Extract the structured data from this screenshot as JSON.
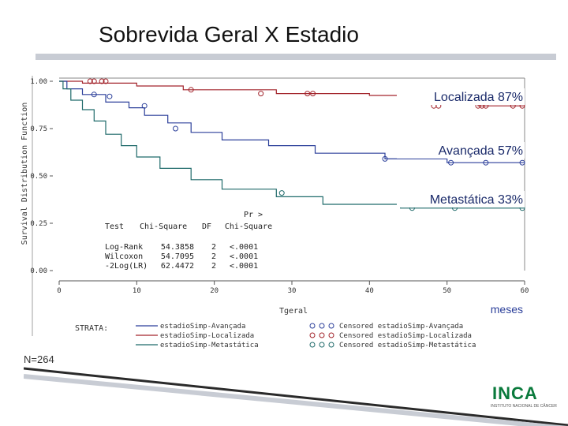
{
  "slide": {
    "title": "Sobrevida Geral X Estadio",
    "n_label": "N=264",
    "units_label": "meses",
    "logo_text": "INCA",
    "logo_sub": "INSTITUTO NACIONAL DE CÂNCER"
  },
  "colors": {
    "avancada": "#2b3f9a",
    "localizada": "#a3252c",
    "metastatica": "#1f6a6a",
    "axis": "#555555",
    "rule": "#c8ccd4"
  },
  "chart_data": {
    "type": "line",
    "step": true,
    "ylabel": "Survival Distribution Function",
    "xlabel": "Tgeral",
    "xlim": [
      0,
      60
    ],
    "ylim": [
      0,
      1
    ],
    "x_ticks": [
      "0",
      "10",
      "20",
      "30",
      "40",
      "50",
      "60"
    ],
    "y_ticks": [
      "0.00",
      "0.25",
      "0.50",
      "0.75",
      "1.00"
    ],
    "annotations": [
      {
        "text": "Localizada  87%",
        "series": "localizada"
      },
      {
        "text": "Avançada  57%",
        "series": "avancada"
      },
      {
        "text": "Metastática 33%",
        "series": "metastatica"
      }
    ],
    "series": [
      {
        "key": "localizada",
        "name": "estadioSimp-Localizada",
        "points": [
          [
            0,
            1.0
          ],
          [
            3,
            1.0
          ],
          [
            3,
            0.99
          ],
          [
            10,
            0.99
          ],
          [
            10,
            0.975
          ],
          [
            16,
            0.975
          ],
          [
            16,
            0.955
          ],
          [
            28,
            0.955
          ],
          [
            28,
            0.935
          ],
          [
            40,
            0.935
          ],
          [
            40,
            0.925
          ],
          [
            48,
            0.925
          ],
          [
            48,
            0.9
          ],
          [
            54,
            0.9
          ],
          [
            54,
            0.87
          ],
          [
            60,
            0.87
          ]
        ],
        "censored": [
          [
            4,
            1.0
          ],
          [
            4.5,
            1.0
          ],
          [
            5.5,
            1.0
          ],
          [
            6,
            1.0
          ],
          [
            17,
            0.955
          ],
          [
            26,
            0.935
          ],
          [
            32,
            0.935
          ],
          [
            32.7,
            0.935
          ],
          [
            48.3,
            0.87
          ],
          [
            48.9,
            0.87
          ],
          [
            54,
            0.87
          ],
          [
            54.5,
            0.87
          ],
          [
            55,
            0.87
          ],
          [
            58.5,
            0.87
          ],
          [
            59.7,
            0.87
          ]
        ]
      },
      {
        "key": "avancada",
        "name": "estadioSimp-Avançada",
        "points": [
          [
            0,
            1.0
          ],
          [
            1,
            1.0
          ],
          [
            1,
            0.96
          ],
          [
            3,
            0.96
          ],
          [
            3,
            0.93
          ],
          [
            6,
            0.93
          ],
          [
            6,
            0.89
          ],
          [
            9,
            0.89
          ],
          [
            9,
            0.86
          ],
          [
            11,
            0.86
          ],
          [
            11,
            0.82
          ],
          [
            14,
            0.82
          ],
          [
            14,
            0.78
          ],
          [
            17,
            0.78
          ],
          [
            17,
            0.73
          ],
          [
            21,
            0.73
          ],
          [
            21,
            0.69
          ],
          [
            27,
            0.69
          ],
          [
            27,
            0.66
          ],
          [
            33,
            0.66
          ],
          [
            33,
            0.62
          ],
          [
            42,
            0.62
          ],
          [
            42,
            0.59
          ],
          [
            50,
            0.59
          ],
          [
            50,
            0.57
          ],
          [
            60,
            0.57
          ]
        ],
        "censored": [
          [
            4.5,
            0.93
          ],
          [
            6.5,
            0.92
          ],
          [
            11,
            0.87
          ],
          [
            15,
            0.75
          ],
          [
            42,
            0.59
          ],
          [
            50.5,
            0.57
          ],
          [
            55,
            0.57
          ],
          [
            59.7,
            0.57
          ]
        ]
      },
      {
        "key": "metastatica",
        "name": "estadioSimp-Metastática",
        "points": [
          [
            0,
            1.0
          ],
          [
            0.5,
            1.0
          ],
          [
            0.5,
            0.96
          ],
          [
            1.5,
            0.96
          ],
          [
            1.5,
            0.9
          ],
          [
            3,
            0.9
          ],
          [
            3,
            0.85
          ],
          [
            4.5,
            0.85
          ],
          [
            4.5,
            0.79
          ],
          [
            6,
            0.79
          ],
          [
            6,
            0.72
          ],
          [
            8,
            0.72
          ],
          [
            8,
            0.66
          ],
          [
            10,
            0.66
          ],
          [
            10,
            0.6
          ],
          [
            13,
            0.6
          ],
          [
            13,
            0.54
          ],
          [
            17,
            0.54
          ],
          [
            17,
            0.48
          ],
          [
            21,
            0.48
          ],
          [
            21,
            0.43
          ],
          [
            28,
            0.43
          ],
          [
            28,
            0.39
          ],
          [
            34,
            0.39
          ],
          [
            34,
            0.35
          ],
          [
            44,
            0.35
          ],
          [
            44,
            0.33
          ],
          [
            60,
            0.33
          ]
        ],
        "censored": [
          [
            28.7,
            0.41
          ],
          [
            45.5,
            0.33
          ],
          [
            51,
            0.33
          ],
          [
            59.7,
            0.33
          ]
        ]
      }
    ],
    "stats_table": {
      "headers": [
        "Test",
        "Chi-Square",
        "DF",
        "Pr >",
        "Chi-Square"
      ],
      "rows": [
        [
          "Log-Rank",
          "54.3858",
          "2",
          "<.0001"
        ],
        [
          "Wilcoxon",
          "54.7095",
          "2",
          "<.0001"
        ],
        [
          "-2Log(LR)",
          "62.4472",
          "2",
          "<.0001"
        ]
      ]
    },
    "legend": {
      "title": "STRATA:",
      "placement": "bottom",
      "lines": [
        "estadioSimp-Avançada",
        "estadioSimp-Localizada",
        "estadioSimp-Metastática"
      ],
      "censored": [
        "Censored estadioSimp-Avançada",
        "Censored estadioSimp-Localizada",
        "Censored estadioSimp-Metastática"
      ]
    }
  }
}
